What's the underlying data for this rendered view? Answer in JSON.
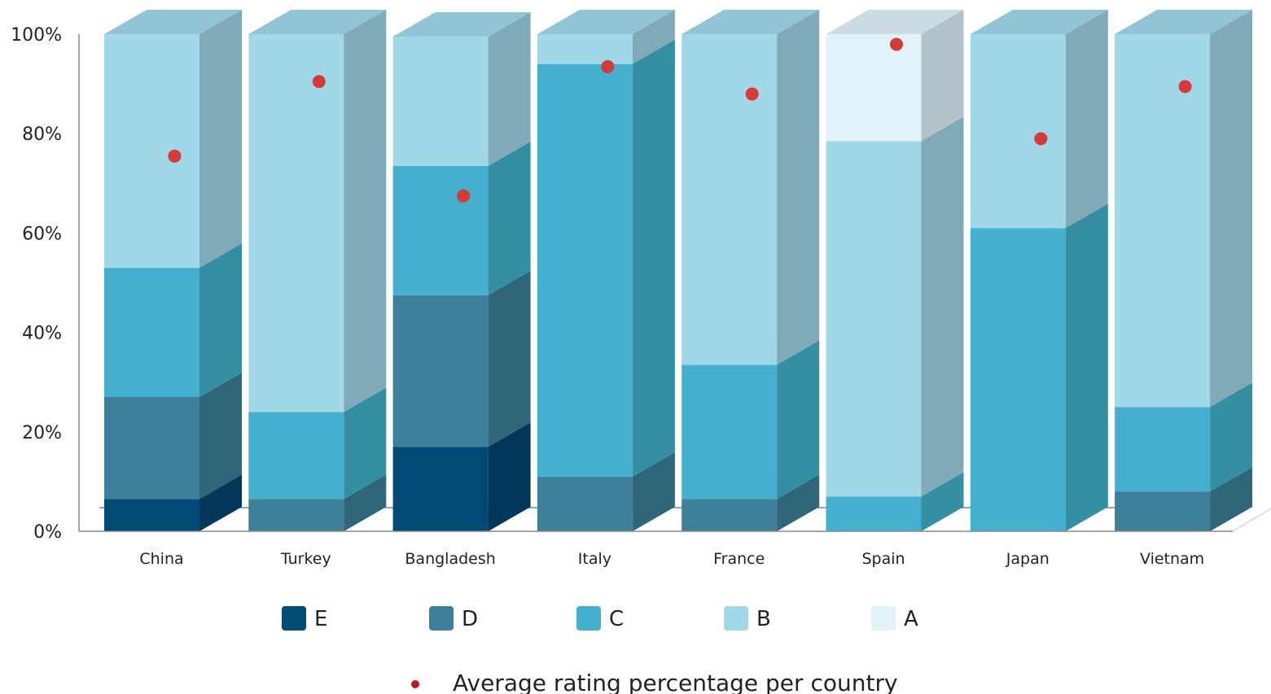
{
  "chart_data": {
    "type": "bar",
    "stacked": true,
    "three_d": true,
    "categories": [
      "China",
      "Turkey",
      "Bangladesh",
      "Italy",
      "France",
      "Spain",
      "Japan",
      "Vietnam"
    ],
    "series": [
      {
        "name": "E",
        "color": "#024A76",
        "side_color": "#01385A",
        "top_color": "#1B5E86",
        "values": [
          6.5,
          0,
          17,
          0,
          0,
          0,
          0,
          0
        ]
      },
      {
        "name": "D",
        "color": "#3E8099",
        "side_color": "#306679",
        "top_color": "#5A95AA",
        "values": [
          20.5,
          6.5,
          30.5,
          11,
          6.5,
          0,
          0,
          8
        ]
      },
      {
        "name": "C",
        "color": "#44B0CE",
        "side_color": "#348FA3",
        "top_color": "#67C0D8",
        "values": [
          26,
          17.5,
          26,
          83,
          27,
          7,
          61,
          17
        ]
      },
      {
        "name": "B",
        "color": "#A1D8E8",
        "side_color": "#80AAB8",
        "top_color": "#91C4D4",
        "values": [
          47,
          76,
          26,
          6,
          66.5,
          71.5,
          39,
          75
        ]
      },
      {
        "name": "A",
        "color": "#E2F2F9",
        "side_color": "#B3C1C8",
        "top_color": "#CDDCE2",
        "values": [
          0,
          0,
          0,
          0,
          0,
          21.5,
          0,
          0
        ]
      }
    ],
    "average": {
      "name": "Average rating percentage per country",
      "color": "#D33A3A",
      "values": [
        73.5,
        88.5,
        65.5,
        91.5,
        86,
        96,
        77,
        87.5
      ]
    },
    "ylim": [
      0,
      100
    ],
    "yticks": [
      "0%",
      "20%",
      "40%",
      "60%",
      "80%",
      "100%"
    ],
    "ytick_values": [
      0,
      20,
      40,
      60,
      80,
      100
    ],
    "grid": false,
    "legend_position": "bottom",
    "title": "",
    "xlabel": "",
    "ylabel": ""
  }
}
